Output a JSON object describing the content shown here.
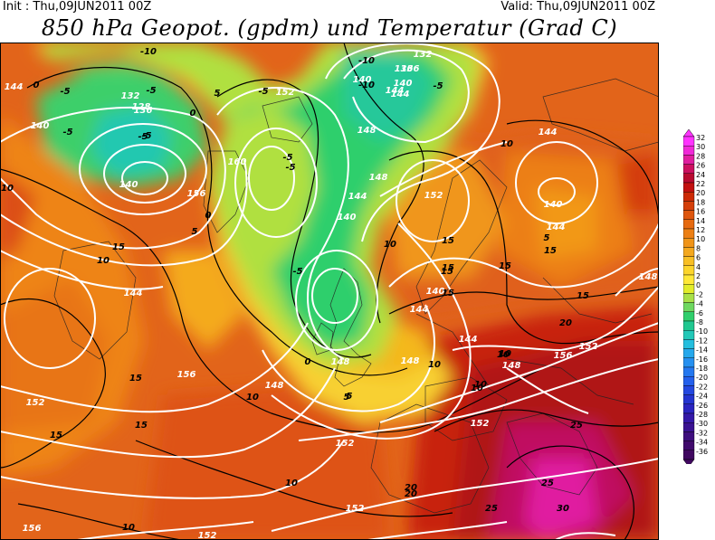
{
  "header": {
    "init": "Init : Thu,09JUN2011 00Z",
    "valid": "Valid: Thu,09JUN2011 00Z",
    "title": "850 hPa Geopot. (gpdm) und Temperatur (Grad C)"
  },
  "legend": {
    "values": [
      "32",
      "30",
      "28",
      "26",
      "24",
      "22",
      "20",
      "18",
      "16",
      "14",
      "12",
      "10",
      "8",
      "6",
      "4",
      "2",
      "0",
      "-2",
      "-4",
      "-6",
      "-8",
      "-10",
      "-12",
      "-14",
      "-16",
      "-18",
      "-20",
      "-22",
      "-24",
      "-26",
      "-28",
      "-30",
      "-32",
      "-34",
      "-36"
    ],
    "colors": [
      "#ff33ff",
      "#f028d8",
      "#e01ea0",
      "#cc1060",
      "#b80a30",
      "#c21010",
      "#cc2a05",
      "#d43f0a",
      "#de560e",
      "#e66a10",
      "#ec7f14",
      "#f09418",
      "#f4a81e",
      "#f8bf24",
      "#fcd52c",
      "#ffe838",
      "#e2ec2a",
      "#a8e048",
      "#6ed860",
      "#2fcf6c",
      "#20c890",
      "#22c8b8",
      "#24bede",
      "#25a8ec",
      "#2590f0",
      "#2478f0",
      "#2460ec",
      "#2448e0",
      "#2434d0",
      "#2a24c0",
      "#3418a8",
      "#3a1292",
      "#3e0e7e",
      "#400a6c",
      "#400860"
    ]
  },
  "map": {
    "contour_labels_geopotential": [
      {
        "text": "144"
      },
      {
        "text": "140"
      },
      {
        "text": "140"
      },
      {
        "text": "144"
      },
      {
        "text": "136"
      },
      {
        "text": "132"
      },
      {
        "text": "128"
      },
      {
        "text": "152"
      },
      {
        "text": "156"
      },
      {
        "text": "160"
      },
      {
        "text": "148"
      },
      {
        "text": "144"
      },
      {
        "text": "140"
      },
      {
        "text": "136"
      },
      {
        "text": "132"
      },
      {
        "text": "136"
      },
      {
        "text": "140"
      },
      {
        "text": "144"
      },
      {
        "text": "148"
      },
      {
        "text": "152"
      },
      {
        "text": "144"
      },
      {
        "text": "140"
      },
      {
        "text": "144"
      },
      {
        "text": "140"
      },
      {
        "text": "144"
      },
      {
        "text": "148"
      },
      {
        "text": "144"
      },
      {
        "text": "148"
      },
      {
        "text": "152"
      },
      {
        "text": "148"
      },
      {
        "text": "156"
      },
      {
        "text": "148"
      },
      {
        "text": "152"
      },
      {
        "text": "152"
      },
      {
        "text": "152"
      },
      {
        "text": "156"
      },
      {
        "text": "156"
      },
      {
        "text": "152"
      },
      {
        "text": "152"
      },
      {
        "text": "148"
      },
      {
        "text": "140"
      },
      {
        "text": "144"
      }
    ],
    "contour_labels_temperature": [
      {
        "text": "-5"
      },
      {
        "text": "-10"
      },
      {
        "text": "-5"
      },
      {
        "text": "0"
      },
      {
        "text": "-5"
      },
      {
        "text": "5"
      },
      {
        "text": "0"
      },
      {
        "text": "-5"
      },
      {
        "text": "-10"
      },
      {
        "text": "-5"
      },
      {
        "text": "-5"
      },
      {
        "text": "-10"
      },
      {
        "text": "-5"
      },
      {
        "text": "-5"
      },
      {
        "text": "0"
      },
      {
        "text": "5"
      },
      {
        "text": "10"
      },
      {
        "text": "15"
      },
      {
        "text": "10"
      },
      {
        "text": "10"
      },
      {
        "text": "5"
      },
      {
        "text": "0"
      },
      {
        "text": "5"
      },
      {
        "text": "10"
      },
      {
        "text": "15"
      },
      {
        "text": "15"
      },
      {
        "text": "10"
      },
      {
        "text": "15"
      },
      {
        "text": "15"
      },
      {
        "text": "10"
      },
      {
        "text": "15"
      },
      {
        "text": "15"
      },
      {
        "text": "20"
      },
      {
        "text": "25"
      },
      {
        "text": "20"
      },
      {
        "text": "25"
      },
      {
        "text": "15"
      },
      {
        "text": "10"
      },
      {
        "text": "15"
      },
      {
        "text": "10"
      },
      {
        "text": "15"
      },
      {
        "text": "10"
      },
      {
        "text": "20"
      },
      {
        "text": "25"
      },
      {
        "text": "30"
      },
      {
        "text": "10"
      },
      {
        "text": "10"
      },
      {
        "text": "-5"
      },
      {
        "text": "-5"
      },
      {
        "text": "15"
      },
      {
        "text": "10"
      },
      {
        "text": "5"
      }
    ]
  }
}
